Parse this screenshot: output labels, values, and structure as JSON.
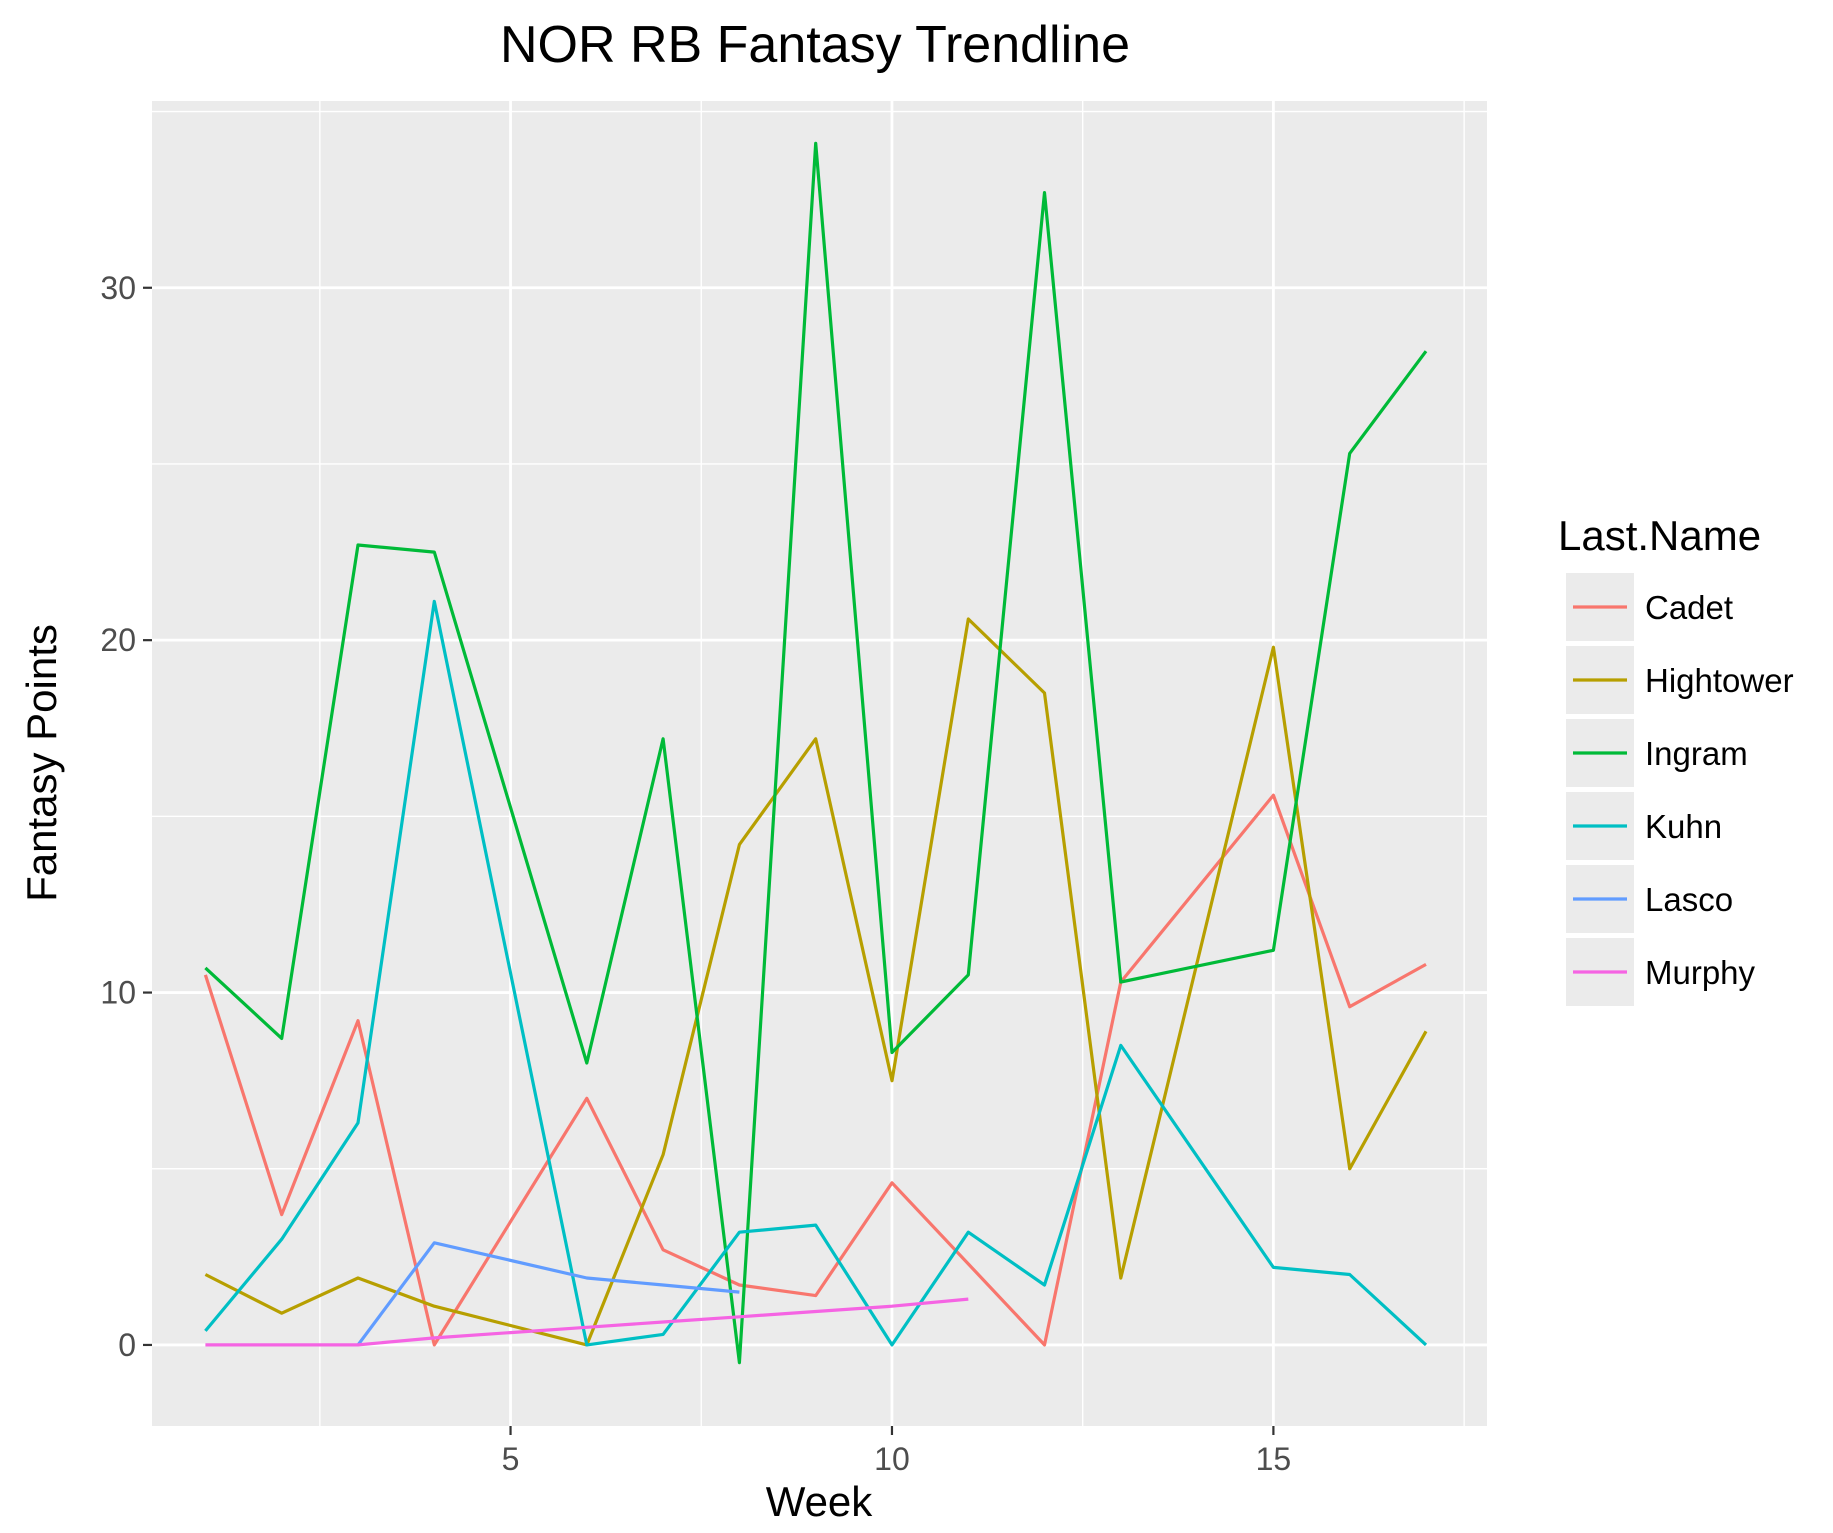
{
  "chart_data": {
    "type": "line",
    "title": "NOR RB Fantasy Trendline",
    "xlabel": "Week",
    "ylabel": "Fantasy Points",
    "xlim": [
      0.3,
      17.8
    ],
    "ylim": [
      -2.3,
      35.3
    ],
    "x_ticks": [
      5,
      10,
      15
    ],
    "y_ticks": [
      0,
      10,
      20,
      30
    ],
    "x_minor": [
      2.5,
      7.5,
      12.5,
      17.5
    ],
    "y_minor": [
      5,
      15,
      25,
      35
    ],
    "grid": true,
    "legend": {
      "title": "Last.Name",
      "position": "right"
    },
    "series": [
      {
        "name": "Cadet",
        "color": "#F8766D",
        "x": [
          1,
          2,
          3,
          4,
          6,
          7,
          8,
          9,
          10,
          12,
          13,
          15,
          16,
          17
        ],
        "values": [
          10.5,
          3.7,
          9.2,
          0.0,
          7.0,
          2.7,
          1.7,
          1.4,
          4.6,
          0.0,
          10.3,
          15.6,
          9.6,
          10.8
        ]
      },
      {
        "name": "Hightower",
        "color": "#B79F00",
        "x": [
          1,
          2,
          3,
          4,
          6,
          7,
          8,
          9,
          10,
          11,
          12,
          13,
          15,
          16,
          17
        ],
        "values": [
          2.0,
          0.9,
          1.9,
          1.1,
          0.0,
          5.4,
          14.2,
          17.2,
          7.5,
          20.6,
          18.5,
          1.9,
          19.8,
          5.0,
          8.9
        ]
      },
      {
        "name": "Ingram",
        "color": "#00BA38",
        "x": [
          1,
          2,
          3,
          4,
          6,
          7,
          8,
          9,
          10,
          11,
          12,
          13,
          15,
          16,
          17
        ],
        "values": [
          10.7,
          8.7,
          22.7,
          22.5,
          8.0,
          17.2,
          -0.5,
          34.1,
          8.3,
          10.5,
          32.7,
          10.3,
          11.2,
          25.3,
          28.2
        ]
      },
      {
        "name": "Kuhn",
        "color": "#00BFC4",
        "x": [
          1,
          2,
          3,
          4,
          6,
          7,
          8,
          9,
          10,
          11,
          12,
          13,
          15,
          16,
          17
        ],
        "values": [
          0.4,
          3.0,
          6.3,
          21.1,
          0.0,
          0.3,
          3.2,
          3.4,
          0.0,
          3.2,
          1.7,
          8.5,
          2.2,
          2.0,
          0.0
        ]
      },
      {
        "name": "Lasco",
        "color": "#619CFF",
        "x": [
          3,
          4,
          6,
          7,
          8
        ],
        "values": [
          0.0,
          2.9,
          1.9,
          1.7,
          1.5
        ]
      },
      {
        "name": "Murphy",
        "color": "#F564E3",
        "x": [
          1,
          2,
          3,
          4,
          5,
          6,
          7,
          8,
          9,
          10,
          11
        ],
        "values": [
          0.0,
          0.0,
          0.0,
          0.2,
          0.35,
          0.5,
          0.65,
          0.8,
          0.95,
          1.1,
          1.3
        ]
      }
    ]
  }
}
